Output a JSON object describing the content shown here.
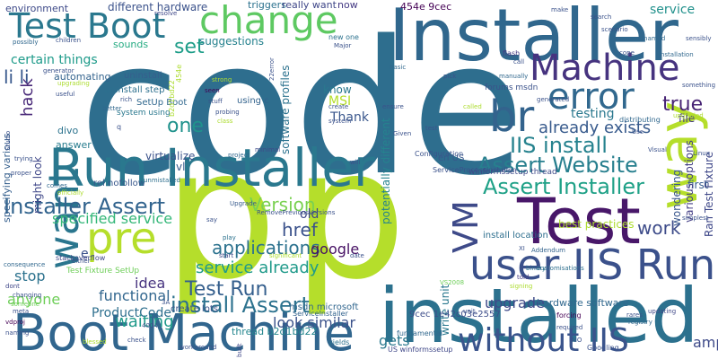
{
  "words": [
    {
      "text": "code",
      "color": "#2e6e8e",
      "rotated": false
    },
    {
      "text": "p",
      "color": "#b5de2b",
      "rotated": false
    },
    {
      "text": "Installer",
      "color": "#30678d",
      "rotated": false
    },
    {
      "text": "installed",
      "color": "#2c718e",
      "rotated": false
    },
    {
      "text": "Run Installer",
      "color": "#2a788e",
      "rotated": false
    },
    {
      "text": "Boot Machine",
      "color": "#31668e",
      "rotated": false
    },
    {
      "text": "Test",
      "color": "#481769",
      "rotated": false
    },
    {
      "text": "user IIS Run",
      "color": "#3b518b",
      "rotated": false
    },
    {
      "text": "Machine",
      "color": "#46337f",
      "rotated": false
    },
    {
      "text": "without IIS",
      "color": "#3a548c",
      "rotated": false
    },
    {
      "text": "error",
      "color": "#31688e",
      "rotated": false
    },
    {
      "text": "Test Boot",
      "color": "#2a788e",
      "rotated": false
    },
    {
      "text": "change",
      "color": "#5ec962",
      "rotated": false
    },
    {
      "text": "pre",
      "color": "#b5de2b",
      "rotated": false
    },
    {
      "text": "way",
      "color": "#b5de2b",
      "rotated": true
    },
    {
      "text": "VM",
      "color": "#3e4a89",
      "rotated": true
    },
    {
      "text": "br",
      "color": "#33638d",
      "rotated": false
    },
    {
      "text": "want",
      "color": "#2a768e",
      "rotated": true
    },
    {
      "text": "Assert Website",
      "color": "#277f8e",
      "rotated": false
    },
    {
      "text": "Assert Installer",
      "color": "#1fa187",
      "rotated": false
    },
    {
      "text": "Installer Assert",
      "color": "#32648e",
      "rotated": false
    },
    {
      "text": "install Assert",
      "color": "#2c728e",
      "rotated": false
    },
    {
      "text": "Test Run",
      "color": "#355f8d",
      "rotated": false
    },
    {
      "text": "Version",
      "color": "#7ad151",
      "rotated": false
    },
    {
      "text": "IIS install",
      "color": "#26828e",
      "rotated": false
    },
    {
      "text": "work",
      "color": "#3e4c8a",
      "rotated": false
    },
    {
      "text": "one",
      "color": "#20928c",
      "rotated": false
    },
    {
      "text": "true",
      "color": "#482475",
      "rotated": false
    },
    {
      "text": "set",
      "color": "#1f9e89",
      "rotated": false
    },
    {
      "text": "li li",
      "color": "#38588c",
      "rotated": false
    },
    {
      "text": "already exists",
      "color": "#375a8c",
      "rotated": false
    },
    {
      "text": "testing",
      "color": "#2a788e",
      "rotated": false
    },
    {
      "text": "service",
      "color": "#21918c",
      "rotated": false
    },
    {
      "text": "hack",
      "color": "#482878",
      "rotated": true
    },
    {
      "text": "href",
      "color": "#3b528b",
      "rotated": false
    },
    {
      "text": "applications",
      "color": "#2c728e",
      "rotated": false
    },
    {
      "text": "service already",
      "color": "#1f9a8a",
      "rotated": false
    },
    {
      "text": "specified service",
      "color": "#35b779",
      "rotated": false
    },
    {
      "text": "upgrade",
      "color": "#3e4989",
      "rotated": false
    },
    {
      "text": "stop",
      "color": "#2c728e",
      "rotated": false
    },
    {
      "text": "anyone",
      "color": "#6ece58",
      "rotated": false
    },
    {
      "text": "functional",
      "color": "#31668e",
      "rotated": false
    },
    {
      "text": "ProductCode",
      "color": "#2e6f8e",
      "rotated": false
    },
    {
      "text": "waiting",
      "color": "#1f9a8a",
      "rotated": false
    },
    {
      "text": "idea",
      "color": "#46337f",
      "rotated": false
    },
    {
      "text": "look similar",
      "color": "#3b528b",
      "rotated": false
    },
    {
      "text": "gets",
      "color": "#2a788e",
      "rotated": false
    },
    {
      "text": "amp",
      "color": "#3e4a89",
      "rotated": false
    },
    {
      "text": "google",
      "color": "#471164",
      "rotated": false
    },
    {
      "text": "old",
      "color": "#3f4889",
      "rotated": false
    },
    {
      "text": "first",
      "color": "#375b8d",
      "rotated": false
    },
    {
      "text": "environment",
      "color": "#3e4a89",
      "rotated": false
    },
    {
      "text": "different hardware",
      "color": "#3b528b",
      "rotated": false
    },
    {
      "text": "triggers",
      "color": "#2c728e",
      "rotated": false
    },
    {
      "text": "really want",
      "color": "#3f4788",
      "rotated": false
    },
    {
      "text": "now",
      "color": "#443983",
      "rotated": false
    },
    {
      "text": "454e 9cec",
      "color": "#440154",
      "rotated": false
    },
    {
      "text": "certain things",
      "color": "#1e9b8a",
      "rotated": false
    },
    {
      "text": "sounds",
      "color": "#25ab82",
      "rotated": false
    },
    {
      "text": "suggestions",
      "color": "#26828e",
      "rotated": false
    },
    {
      "text": "automating",
      "color": "#33638d",
      "rotated": false
    },
    {
      "text": "uninstall",
      "color": "#355f8d",
      "rotated": false
    },
    {
      "text": "uninstall step",
      "color": "#2d708e",
      "rotated": false
    },
    {
      "text": "SetUp Boot",
      "color": "#31688e",
      "rotated": false
    },
    {
      "text": "system using",
      "color": "#2a788e",
      "rotated": false
    },
    {
      "text": "using c",
      "color": "#33638d",
      "rotated": false
    },
    {
      "text": "MSI",
      "color": "#b5de2b",
      "rotated": false
    },
    {
      "text": "know",
      "color": "#2a788e",
      "rotated": false
    },
    {
      "text": "Thank",
      "color": "#39568c",
      "rotated": false
    },
    {
      "text": "answer",
      "color": "#287c8e",
      "rotated": false
    },
    {
      "text": "virtualize",
      "color": "#3b528b",
      "rotated": false
    },
    {
      "text": "vl",
      "color": "#375a8c",
      "rotated": false
    },
    {
      "text": "e",
      "color": "#3b528b",
      "rotated": false
    },
    {
      "text": "rel nofollow",
      "color": "#38588c",
      "rotated": false
    },
    {
      "text": "divo",
      "color": "#2c738e",
      "rotated": false
    },
    {
      "text": "might look",
      "color": "#3f4788",
      "rotated": true
    },
    {
      "text": "specifying various",
      "color": "#355f8d",
      "rotated": true
    },
    {
      "text": "software profiles",
      "color": "#2c728e",
      "rotated": true
    },
    {
      "text": "potentially different",
      "color": "#25838e",
      "rotated": true
    },
    {
      "text": "wondering",
      "color": "#39568c",
      "rotated": true
    },
    {
      "text": "various options",
      "color": "#433e85",
      "rotated": true
    },
    {
      "text": "Ran Test Fixture",
      "color": "#3f4889",
      "rotated": true
    },
    {
      "text": "file",
      "color": "#443a83",
      "rotated": false
    },
    {
      "text": "best practices",
      "color": "#addc30",
      "rotated": false
    },
    {
      "text": "hardware software",
      "color": "#31688e",
      "rotated": false
    },
    {
      "text": "install location",
      "color": "#2e6f8e",
      "rotated": false
    },
    {
      "text": "write unit",
      "color": "#2a788e",
      "rotated": true
    },
    {
      "text": "9cec 1e42c03e2557",
      "color": "#3d4d8a",
      "rotated": false
    },
    {
      "text": "create lots",
      "color": "#3b528b",
      "rotated": false
    },
    {
      "text": "msdn microsoft",
      "color": "#31668e",
      "rotated": false
    },
    {
      "text": "ServiceInstaller",
      "color": "#33638d",
      "rotated": false
    },
    {
      "text": "thread b2d1bd22",
      "color": "#24868e",
      "rotated": false
    },
    {
      "text": "Test Fixture SetUp",
      "color": "#6ece58",
      "rotated": false
    },
    {
      "text": "ServiceProcessInstaller",
      "color": "#3b528b",
      "rotated": false
    },
    {
      "text": "winformssetup thread",
      "color": "#3e4a89",
      "rotated": false
    },
    {
      "text": "en US",
      "color": "#38588c",
      "rotated": false
    },
    {
      "text": "stackoverflow",
      "color": "#3f4788",
      "rotated": false
    },
    {
      "text": "forums msdn",
      "color": "#3b528b",
      "rotated": false
    },
    {
      "text": "US winformssetup",
      "color": "#3f4788",
      "rotated": false
    },
    {
      "text": "fundamental",
      "color": "#31688e",
      "rotated": false
    },
    {
      "text": "RemovePreviousVersions",
      "color": "#3b528b",
      "rotated": false
    },
    {
      "text": "Upgrade",
      "color": "#375a8c",
      "rotated": false
    },
    {
      "text": "Googling",
      "color": "#3b528b",
      "rotated": false
    },
    {
      "text": "yields",
      "color": "#2c728e",
      "rotated": false
    },
    {
      "text": "distributing",
      "color": "#31688e",
      "rotated": false
    },
    {
      "text": "upgraded",
      "color": "#addc30",
      "rotated": false
    },
    {
      "text": "Addendum",
      "color": "#33638d",
      "rotated": false
    },
    {
      "text": "Configuration",
      "color": "#3b528b",
      "rotated": false
    },
    {
      "text": "VS2008",
      "color": "#6ece58",
      "rotated": false
    },
    {
      "text": "binary",
      "color": "#2c728e",
      "rotated": false
    },
    {
      "text": "customisations",
      "color": "#2e6f8e",
      "rotated": false
    },
    {
      "text": "updating",
      "color": "#3f4788",
      "rotated": false
    },
    {
      "text": "registry",
      "color": "#31688e",
      "rotated": false
    },
    {
      "text": "forcing",
      "color": "#440154",
      "rotated": false
    },
    {
      "text": "required",
      "color": "#3b528b",
      "rotated": false
    },
    {
      "text": "told",
      "color": "#443a83",
      "rotated": false
    },
    {
      "text": "signing",
      "color": "#addc30",
      "rotated": false
    },
    {
      "text": "date",
      "color": "#3b528b",
      "rotated": false
    },
    {
      "text": "play",
      "color": "#2c728e",
      "rotated": false
    },
    {
      "text": "start",
      "color": "#3e4a89",
      "rotated": false
    },
    {
      "text": "significant",
      "color": "#addc30",
      "rotated": false
    },
    {
      "text": "either",
      "color": "#3b528b",
      "rotated": false
    },
    {
      "text": "consequence",
      "color": "#31688e",
      "rotated": false
    },
    {
      "text": "dont",
      "color": "#3f4788",
      "rotated": false
    },
    {
      "text": "changing",
      "color": "#3b528b",
      "rotated": false
    },
    {
      "text": "someone",
      "color": "#6ece58",
      "rotated": false
    },
    {
      "text": "meta",
      "color": "#3b528b",
      "rotated": false
    },
    {
      "text": "vdproj",
      "color": "#440154",
      "rotated": false
    },
    {
      "text": "naming",
      "color": "#3b528b",
      "rotated": false
    },
    {
      "text": "blessed",
      "color": "#addc30",
      "rotated": false
    },
    {
      "text": "check",
      "color": "#3b528b",
      "rotated": false
    },
    {
      "text": "built",
      "color": "#3f4788",
      "rotated": true
    },
    {
      "text": "workaround",
      "color": "#3b528b",
      "rotated": false
    },
    {
      "text": "comes",
      "color": "#31688e",
      "rotated": false
    },
    {
      "text": "officially",
      "color": "#addc30",
      "rotated": false
    },
    {
      "text": "unmistalled",
      "color": "#2e6f8e",
      "rotated": false
    },
    {
      "text": "say",
      "color": "#3b528b",
      "rotated": false
    },
    {
      "text": "project",
      "color": "#31688e",
      "rotated": false
    },
    {
      "text": "minimal",
      "color": "#3e4a89",
      "rotated": false
    },
    {
      "text": "probing",
      "color": "#3b528b",
      "rotated": false
    },
    {
      "text": "class",
      "color": "#addc30",
      "rotated": false
    },
    {
      "text": "stuff",
      "color": "#3b528b",
      "rotated": false
    },
    {
      "text": "seen",
      "color": "#440154",
      "rotated": false
    },
    {
      "text": "strong",
      "color": "#addc30",
      "rotated": false
    },
    {
      "text": "rich",
      "color": "#3b528b",
      "rotated": false
    },
    {
      "text": "better",
      "color": "#31688e",
      "rotated": false
    },
    {
      "text": "useful",
      "color": "#3b528b",
      "rotated": false
    },
    {
      "text": "upgrading",
      "color": "#addc30",
      "rotated": false
    },
    {
      "text": "generator",
      "color": "#3b528b",
      "rotated": false
    },
    {
      "text": "possibly",
      "color": "#31688e",
      "rotated": false
    },
    {
      "text": "children",
      "color": "#3b528b",
      "rotated": false
    },
    {
      "text": "resolve",
      "color": "#3f4788",
      "rotated": false
    },
    {
      "text": "new one",
      "color": "#2c728e",
      "rotated": false
    },
    {
      "text": "Major",
      "color": "#3b528b",
      "rotated": false
    },
    {
      "text": "basic",
      "color": "#31688e",
      "rotated": false
    },
    {
      "text": "flash",
      "color": "#443a83",
      "rotated": false
    },
    {
      "text": "call",
      "color": "#3b528b",
      "rotated": false
    },
    {
      "text": "make",
      "color": "#3b528b",
      "rotated": false
    },
    {
      "text": "search",
      "color": "#3b528b",
      "rotated": false
    },
    {
      "text": "scenario",
      "color": "#3b528b",
      "rotated": false
    },
    {
      "text": "renamed",
      "color": "#31688e",
      "rotated": false
    },
    {
      "text": "sensibly",
      "color": "#3b528b",
      "rotated": false
    },
    {
      "text": "installation",
      "color": "#31688e",
      "rotated": false
    },
    {
      "text": "cope",
      "color": "#3b528b",
      "rotated": false
    },
    {
      "text": "something",
      "color": "#3b528b",
      "rotated": false
    },
    {
      "text": "manually",
      "color": "#31688e",
      "rotated": false
    },
    {
      "text": "generated",
      "color": "#3b528b",
      "rotated": false
    },
    {
      "text": "called",
      "color": "#addc30",
      "rotated": false
    },
    {
      "text": "pick",
      "color": "#3b528b",
      "rotated": false
    },
    {
      "text": "create",
      "color": "#3b528b",
      "rotated": false
    },
    {
      "text": "system",
      "color": "#3b528b",
      "rotated": false
    },
    {
      "text": "Given",
      "color": "#3b528b",
      "rotated": false
    },
    {
      "text": "will",
      "color": "#3b528b",
      "rotated": false
    },
    {
      "text": "trying",
      "color": "#3b528b",
      "rotated": false
    },
    {
      "text": "proper",
      "color": "#3b528b",
      "rotated": false
    },
    {
      "text": "simplest",
      "color": "#3b528b",
      "rotated": false
    },
    {
      "text": "Visual",
      "color": "#3b528b",
      "rotated": false
    },
    {
      "text": "Studio",
      "color": "#3b528b",
      "rotated": true
    },
    {
      "text": "Linux",
      "color": "#3b528b",
      "rotated": false
    },
    {
      "text": "Use",
      "color": "#3b528b",
      "rotated": false
    },
    {
      "text": "ensure",
      "color": "#3b528b",
      "rotated": false
    },
    {
      "text": "test",
      "color": "#3b528b",
      "rotated": false
    },
    {
      "text": "q",
      "color": "#3b528b",
      "rotated": false
    },
    {
      "text": "454e",
      "color": "#addc30",
      "rotated": true
    },
    {
      "text": "b2d1bd22",
      "color": "#addc30",
      "rotated": true
    },
    {
      "text": "22error",
      "color": "#3b528b",
      "rotated": true
    },
    {
      "text": "4004",
      "color": "#3b528b",
      "rotated": false
    },
    {
      "text": "3A",
      "color": "#3b528b",
      "rotated": false
    },
    {
      "text": "rares",
      "color": "#3b528b",
      "rotated": false
    },
    {
      "text": "XI",
      "color": "#3b528b",
      "rotated": false
    },
    {
      "text": "AIO",
      "color": "#3b528b",
      "rotated": false
    },
    {
      "text": "unit",
      "color": "#3b528b",
      "rotated": false
    }
  ]
}
